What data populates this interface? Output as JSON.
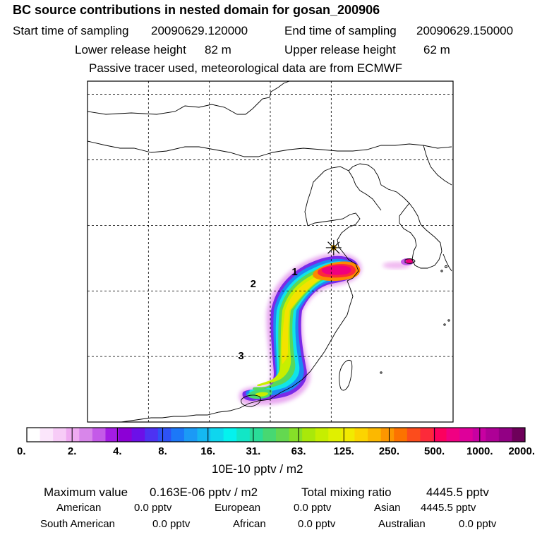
{
  "chart_data": {
    "type": "heatmap",
    "title": "BC  source contributions in nested domain for gosan_200906",
    "header": {
      "start_label": "Start time of sampling",
      "start_value": "20090629.120000",
      "end_label": "End time of sampling",
      "end_value": "20090629.150000",
      "lower_label": "Lower release height",
      "lower_value": "82 m",
      "upper_label": "Upper release height",
      "upper_value": "62 m",
      "tracer_note": "Passive tracer used, meteorological data are from ECMWF"
    },
    "colorbar": {
      "unit_label": "10E-10 pptv / m2",
      "tick_labels": [
        "0.",
        "2.",
        "4.",
        "8.",
        "16.",
        "31.",
        "63.",
        "125.",
        "250.",
        "500.",
        "1000.",
        "2000."
      ],
      "colors": [
        "#ffffff",
        "#fbe6fb",
        "#f7ccf7",
        "#efaaf1",
        "#d886ea",
        "#c45ae8",
        "#a41ce4",
        "#8c00d6",
        "#6c10e8",
        "#4d32f2",
        "#2e52f6",
        "#1c78f8",
        "#1b9af6",
        "#15b8f2",
        "#0fd6ee",
        "#04f2ee",
        "#12e6c6",
        "#2adc98",
        "#47d872",
        "#64d850",
        "#86e028",
        "#a9e80a",
        "#c6ee00",
        "#e0f000",
        "#f2ea00",
        "#fcd400",
        "#fcb800",
        "#fc9600",
        "#fc7200",
        "#fc4c1c",
        "#fc2a3a",
        "#fc005e",
        "#f00082",
        "#de009a",
        "#c800a2",
        "#ae0096",
        "#920084",
        "#6e005a"
      ]
    },
    "markers": [
      {
        "label": "1",
        "lon": 123.0,
        "lat": 31.4
      },
      {
        "label": "2",
        "lon": 119.6,
        "lat": 30.5
      },
      {
        "label": "3",
        "lon": 118.6,
        "lat": 25.0
      }
    ],
    "receptor": {
      "name": "gosan",
      "lon": 126.2,
      "lat": 33.3
    },
    "map_extent": {
      "lon": [
        106,
        136
      ],
      "lat": [
        20,
        46
      ]
    },
    "grid_lon": [
      111,
      116,
      121,
      126
    ],
    "grid_lat": [
      25,
      30,
      35,
      40,
      45
    ]
  },
  "footer": {
    "max_label": "Maximum value",
    "max_value": "0.163E-06 pptv / m2",
    "total_label": "Total mixing ratio",
    "total_value": "4445.5 pptv",
    "regions": [
      {
        "name": "American",
        "value": "0.0 pptv"
      },
      {
        "name": "European",
        "value": "0.0 pptv"
      },
      {
        "name": "Asian",
        "value": "4445.5 pptv"
      },
      {
        "name": "South American",
        "value": "0.0 pptv"
      },
      {
        "name": "African",
        "value": "0.0 pptv"
      },
      {
        "name": "Australian",
        "value": "0.0 pptv"
      }
    ]
  }
}
